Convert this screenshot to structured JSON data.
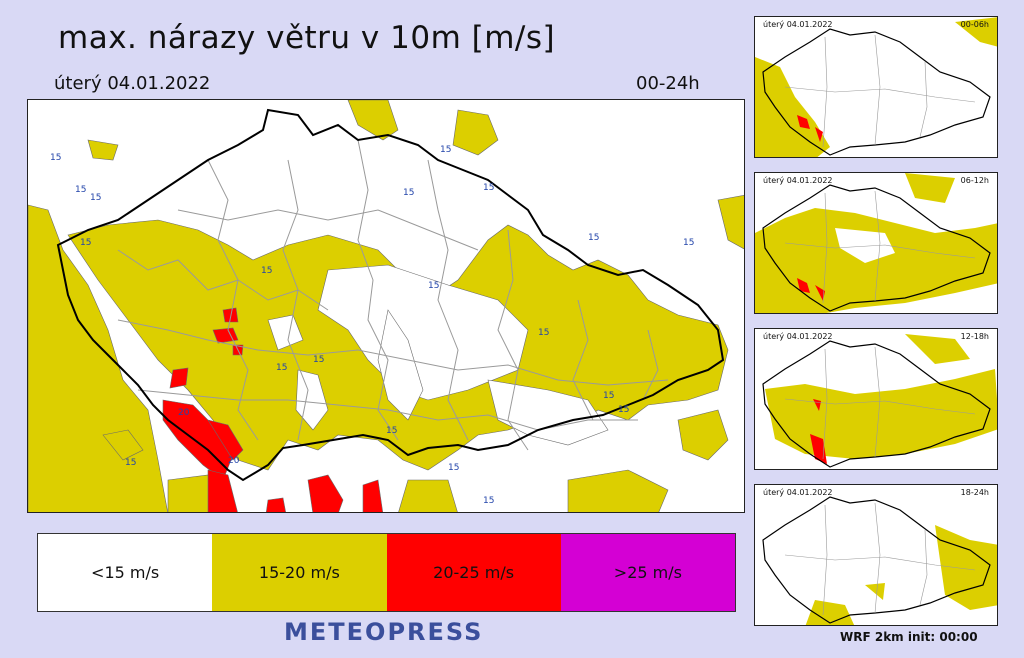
{
  "header": {
    "title": "max. nárazy větru v 10m [m/s]",
    "date": "úterý 04.01.2022",
    "period": "00-24h"
  },
  "legend": [
    {
      "label": "<15 m/s",
      "color": "#ffffff"
    },
    {
      "label": "15-20 m/s",
      "color": "#dccf00"
    },
    {
      "label": "20-25 m/s",
      "color": "#ff0000"
    },
    {
      "label": ">25 m/s",
      "color": "#d400d4"
    }
  ],
  "brand": "METEOPRESS",
  "model_info": "WRF  2km  init: 00:00",
  "main_map": {
    "contour_labels": [
      "15",
      "15",
      "15",
      "15",
      "15",
      "15",
      "15",
      "15",
      "15",
      "15",
      "15",
      "15",
      "15",
      "15",
      "15",
      "15",
      "15",
      "15",
      "15",
      "15",
      "20",
      "20"
    ]
  },
  "mini_maps": [
    {
      "date": "úterý 04.01.2022",
      "period": "00-06h"
    },
    {
      "date": "úterý 04.01.2022",
      "period": "06-12h"
    },
    {
      "date": "úterý 04.01.2022",
      "period": "12-18h"
    },
    {
      "date": "úterý 04.01.2022",
      "period": "18-24h"
    }
  ],
  "colors": {
    "background": "#d9d9f5",
    "zone_15_20": "#dccf00",
    "zone_20_25": "#ff0000",
    "zone_25_plus": "#d400d4",
    "border": "#000000",
    "districts": "#9a9a9a",
    "brand": "#3b4f9c"
  }
}
